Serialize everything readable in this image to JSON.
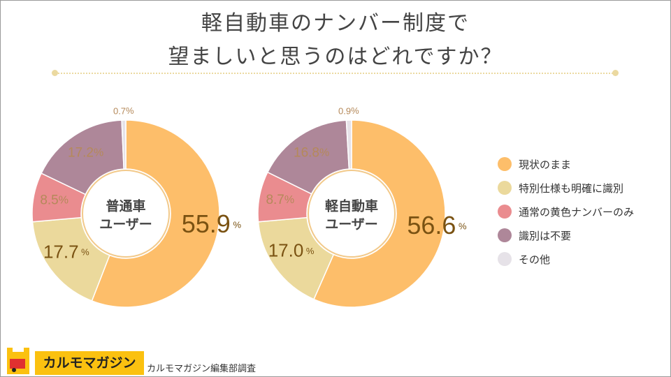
{
  "title_line1": "軽自動車のナンバー制度で",
  "title_line2": "望ましいと思うのはどれですか？",
  "chart_data": [
    {
      "type": "pie",
      "title": "普通車 ユーザー",
      "center_label": [
        "普通車",
        "ユーザー"
      ],
      "categories": [
        "現状のまま",
        "特別仕様も明確に識別",
        "通常の黄色ナンバーのみ",
        "識別は不要",
        "その他"
      ],
      "values": [
        55.9,
        17.7,
        8.5,
        17.2,
        0.7
      ],
      "unit": "%"
    },
    {
      "type": "pie",
      "title": "軽自動車 ユーザー",
      "center_label": [
        "軽自動車",
        "ユーザー"
      ],
      "categories": [
        "現状のまま",
        "特別仕様も明確に識別",
        "通常の黄色ナンバーのみ",
        "識別は不要",
        "その他"
      ],
      "values": [
        56.6,
        17.0,
        8.7,
        16.8,
        0.9
      ],
      "unit": "%"
    }
  ],
  "legend": [
    {
      "label": "現状のまま",
      "color": "#FDBE6A"
    },
    {
      "label": "特別仕様も明確に識別",
      "color": "#EBD99C"
    },
    {
      "label": "通常の黄色ナンバーのみ",
      "color": "#EA8C8F"
    },
    {
      "label": "識別は不要",
      "color": "#AE8799"
    },
    {
      "label": "その他",
      "color": "#E6E2E8"
    }
  ],
  "footer": {
    "brand": "カルモマガジン",
    "credit": "カルモマガジン編集部調査"
  }
}
